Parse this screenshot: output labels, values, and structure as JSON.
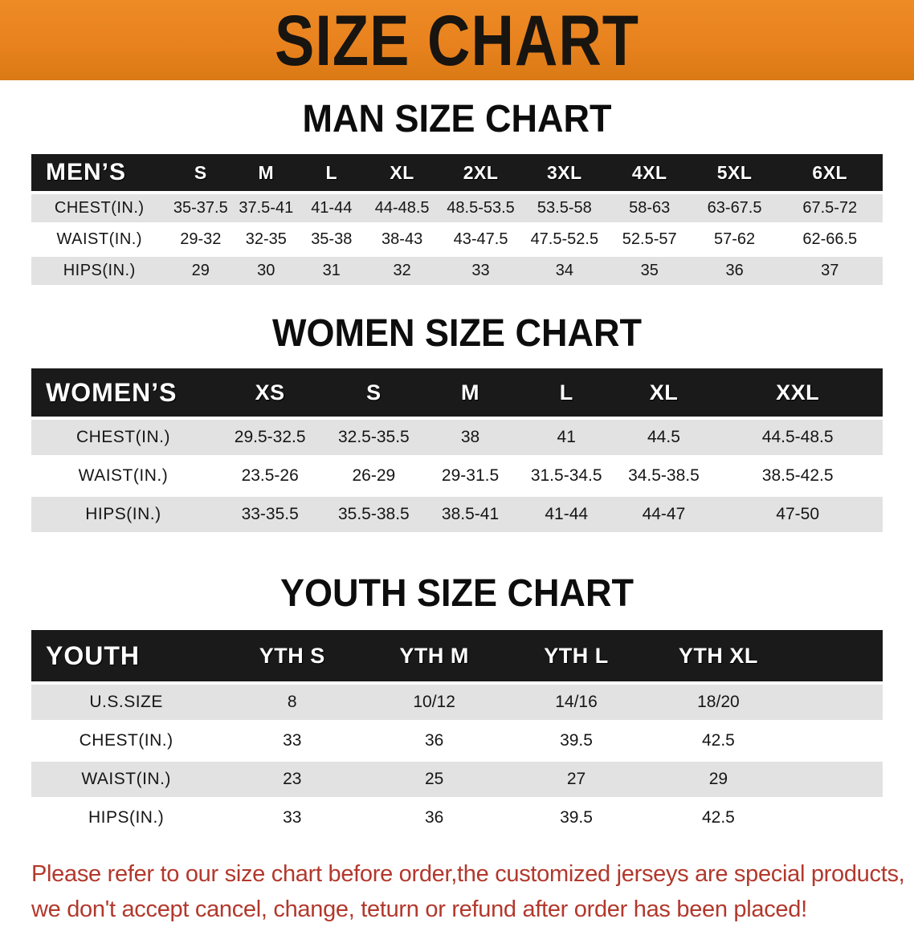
{
  "banner": {
    "title": "SIZE CHART",
    "background_color": "#e8821e",
    "text_color": "#181410"
  },
  "sections": [
    {
      "heading": "MAN SIZE CHART"
    },
    {
      "heading": "WOMEN SIZE CHART"
    },
    {
      "heading": "YOUTH SIZE CHART"
    }
  ],
  "chart_data": [
    {
      "type": "table",
      "title": "MAN SIZE CHART",
      "corner_label": "MEN’S",
      "columns": [
        "S",
        "M",
        "L",
        "XL",
        "2XL",
        "3XL",
        "4XL",
        "5XL",
        "6XL"
      ],
      "rows": [
        {
          "label": "CHEST(IN.)",
          "values": [
            "35-37.5",
            "37.5-41",
            "41-44",
            "44-48.5",
            "48.5-53.5",
            "53.5-58",
            "58-63",
            "63-67.5",
            "67.5-72"
          ]
        },
        {
          "label": "WAIST(IN.)",
          "values": [
            "29-32",
            "32-35",
            "35-38",
            "38-43",
            "43-47.5",
            "47.5-52.5",
            "52.5-57",
            "57-62",
            "62-66.5"
          ]
        },
        {
          "label": "HIPS(IN.)",
          "values": [
            "29",
            "30",
            "31",
            "32",
            "33",
            "34",
            "35",
            "36",
            "37"
          ]
        }
      ]
    },
    {
      "type": "table",
      "title": "WOMEN SIZE CHART",
      "corner_label": "WOMEN’S",
      "columns": [
        "XS",
        "S",
        "M",
        "L",
        "XL",
        "XXL"
      ],
      "rows": [
        {
          "label": "CHEST(IN.)",
          "values": [
            "29.5-32.5",
            "32.5-35.5",
            "38",
            "41",
            "44.5",
            "44.5-48.5"
          ]
        },
        {
          "label": "WAIST(IN.)",
          "values": [
            "23.5-26",
            "26-29",
            "29-31.5",
            "31.5-34.5",
            "34.5-38.5",
            "38.5-42.5"
          ]
        },
        {
          "label": "HIPS(IN.)",
          "values": [
            "33-35.5",
            "35.5-38.5",
            "38.5-41",
            "41-44",
            "44-47",
            "47-50"
          ]
        }
      ]
    },
    {
      "type": "table",
      "title": "YOUTH SIZE CHART",
      "corner_label": "YOUTH",
      "columns": [
        "YTH S",
        "YTH M",
        "YTH L",
        "YTH XL"
      ],
      "rows": [
        {
          "label": "U.S.SIZE",
          "values": [
            "8",
            "10/12",
            "14/16",
            "18/20"
          ]
        },
        {
          "label": "CHEST(IN.)",
          "values": [
            "33",
            "36",
            "39.5",
            "42.5"
          ]
        },
        {
          "label": "WAIST(IN.)",
          "values": [
            "23",
            "25",
            "27",
            "29"
          ]
        },
        {
          "label": "HIPS(IN.)",
          "values": [
            "33",
            "36",
            "39.5",
            "42.5"
          ]
        }
      ]
    }
  ],
  "disclaimer": {
    "line1": "Please refer to our size chart before order,the customized jerseys are special products,",
    "line2": "we don't accept cancel, change, teturn or refund after order has been placed!",
    "color": "#b2382c"
  },
  "colors": {
    "header_band": "#1a1a1a",
    "row_shaded": "#e2e2e2",
    "row_plain": "#ffffff",
    "heading_text": "#0d0d0d"
  }
}
